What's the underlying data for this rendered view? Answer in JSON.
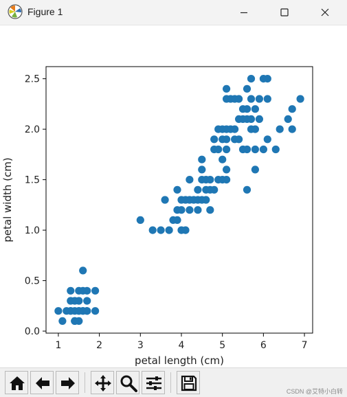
{
  "window": {
    "title": "Figure 1",
    "icons": {
      "app": "matplotlib-icon",
      "minimize": "minimize-icon",
      "maximize": "maximize-icon",
      "close": "close-icon"
    }
  },
  "toolbar": {
    "buttons": [
      {
        "id": "home",
        "icon": "home-icon"
      },
      {
        "id": "back",
        "icon": "arrow-left-icon"
      },
      {
        "id": "forward",
        "icon": "arrow-right-icon"
      },
      {
        "id": "pan",
        "icon": "move-icon"
      },
      {
        "id": "zoom",
        "icon": "zoom-icon"
      },
      {
        "id": "subplots",
        "icon": "sliders-icon"
      },
      {
        "id": "save",
        "icon": "save-icon"
      }
    ]
  },
  "watermark": "CSDN @艾特小白转",
  "colors": {
    "marker": "#1f77b4",
    "titlebar": "#f3f3f3",
    "toolbar": "#f0f0f0"
  },
  "chart_data": {
    "type": "scatter",
    "title": "",
    "xlabel": "petal length (cm)",
    "ylabel": "petal width (cm)",
    "xlim": [
      0.7,
      7.2
    ],
    "ylim": [
      -0.02,
      2.62
    ],
    "xticks": [
      1,
      2,
      3,
      4,
      5,
      6,
      7
    ],
    "yticks": [
      0.0,
      0.5,
      1.0,
      1.5,
      2.0,
      2.5
    ],
    "xtick_labels": [
      "1",
      "2",
      "3",
      "4",
      "5",
      "6",
      "7"
    ],
    "ytick_labels": [
      "0.0",
      "0.5",
      "1.0",
      "1.5",
      "2.0",
      "2.5"
    ],
    "grid": false,
    "series": [
      {
        "points": [
          [
            1.0,
            0.2
          ],
          [
            1.1,
            0.1
          ],
          [
            1.2,
            0.2
          ],
          [
            1.3,
            0.2
          ],
          [
            1.4,
            0.2
          ],
          [
            1.5,
            0.2
          ],
          [
            1.6,
            0.2
          ],
          [
            1.7,
            0.2
          ],
          [
            1.9,
            0.2
          ],
          [
            1.3,
            0.3
          ],
          [
            1.4,
            0.3
          ],
          [
            1.5,
            0.3
          ],
          [
            1.7,
            0.3
          ],
          [
            1.3,
            0.4
          ],
          [
            1.5,
            0.4
          ],
          [
            1.6,
            0.4
          ],
          [
            1.7,
            0.4
          ],
          [
            1.9,
            0.4
          ],
          [
            1.4,
            0.1
          ],
          [
            1.5,
            0.1
          ],
          [
            1.6,
            0.6
          ],
          [
            1.6,
            0.2
          ],
          [
            1.5,
            0.2
          ],
          [
            1.3,
            0.2
          ],
          [
            1.4,
            0.1
          ],
          [
            1.7,
            0.2
          ],
          [
            3.0,
            1.1
          ],
          [
            3.3,
            1.0
          ],
          [
            3.5,
            1.0
          ],
          [
            3.6,
            1.3
          ],
          [
            3.7,
            1.0
          ],
          [
            3.8,
            1.1
          ],
          [
            3.9,
            1.1
          ],
          [
            3.9,
            1.2
          ],
          [
            3.9,
            1.4
          ],
          [
            4.0,
            1.0
          ],
          [
            4.0,
            1.2
          ],
          [
            4.0,
            1.3
          ],
          [
            4.1,
            1.0
          ],
          [
            4.1,
            1.3
          ],
          [
            4.2,
            1.2
          ],
          [
            4.2,
            1.3
          ],
          [
            4.2,
            1.5
          ],
          [
            4.3,
            1.3
          ],
          [
            4.4,
            1.2
          ],
          [
            4.4,
            1.3
          ],
          [
            4.4,
            1.4
          ],
          [
            4.5,
            1.3
          ],
          [
            4.5,
            1.5
          ],
          [
            4.5,
            1.6
          ],
          [
            4.5,
            1.7
          ],
          [
            4.6,
            1.3
          ],
          [
            4.6,
            1.4
          ],
          [
            4.6,
            1.5
          ],
          [
            4.7,
            1.2
          ],
          [
            4.7,
            1.4
          ],
          [
            4.7,
            1.5
          ],
          [
            4.8,
            1.4
          ],
          [
            4.8,
            1.8
          ],
          [
            4.9,
            1.5
          ],
          [
            4.9,
            1.8
          ],
          [
            5.0,
            1.5
          ],
          [
            5.0,
            1.7
          ],
          [
            5.0,
            2.0
          ],
          [
            5.1,
            1.5
          ],
          [
            5.1,
            1.6
          ],
          [
            5.1,
            1.8
          ],
          [
            5.1,
            1.9
          ],
          [
            5.1,
            2.0
          ],
          [
            5.1,
            2.3
          ],
          [
            5.1,
            2.4
          ],
          [
            5.2,
            2.0
          ],
          [
            5.2,
            2.3
          ],
          [
            5.3,
            1.9
          ],
          [
            5.3,
            2.3
          ],
          [
            5.4,
            2.1
          ],
          [
            5.4,
            2.3
          ],
          [
            5.5,
            1.8
          ],
          [
            5.5,
            2.1
          ],
          [
            5.5,
            2.2
          ],
          [
            5.6,
            1.4
          ],
          [
            5.6,
            1.8
          ],
          [
            5.6,
            2.1
          ],
          [
            5.6,
            2.2
          ],
          [
            5.6,
            2.4
          ],
          [
            5.7,
            2.1
          ],
          [
            5.7,
            2.3
          ],
          [
            5.7,
            2.5
          ],
          [
            5.8,
            1.6
          ],
          [
            5.8,
            1.8
          ],
          [
            5.8,
            2.2
          ],
          [
            5.9,
            2.1
          ],
          [
            5.9,
            2.3
          ],
          [
            6.0,
            1.8
          ],
          [
            6.0,
            2.5
          ],
          [
            6.1,
            1.9
          ],
          [
            6.1,
            2.3
          ],
          [
            6.1,
            2.5
          ],
          [
            6.3,
            1.8
          ],
          [
            6.4,
            2.0
          ],
          [
            6.6,
            2.1
          ],
          [
            6.7,
            2.0
          ],
          [
            6.7,
            2.2
          ],
          [
            6.9,
            2.3
          ],
          [
            4.9,
            2.0
          ],
          [
            5.0,
            1.9
          ],
          [
            5.3,
            2.0
          ],
          [
            5.7,
            2.0
          ],
          [
            5.4,
            1.9
          ],
          [
            5.8,
            2.0
          ],
          [
            4.8,
            1.9
          ]
        ]
      }
    ]
  }
}
